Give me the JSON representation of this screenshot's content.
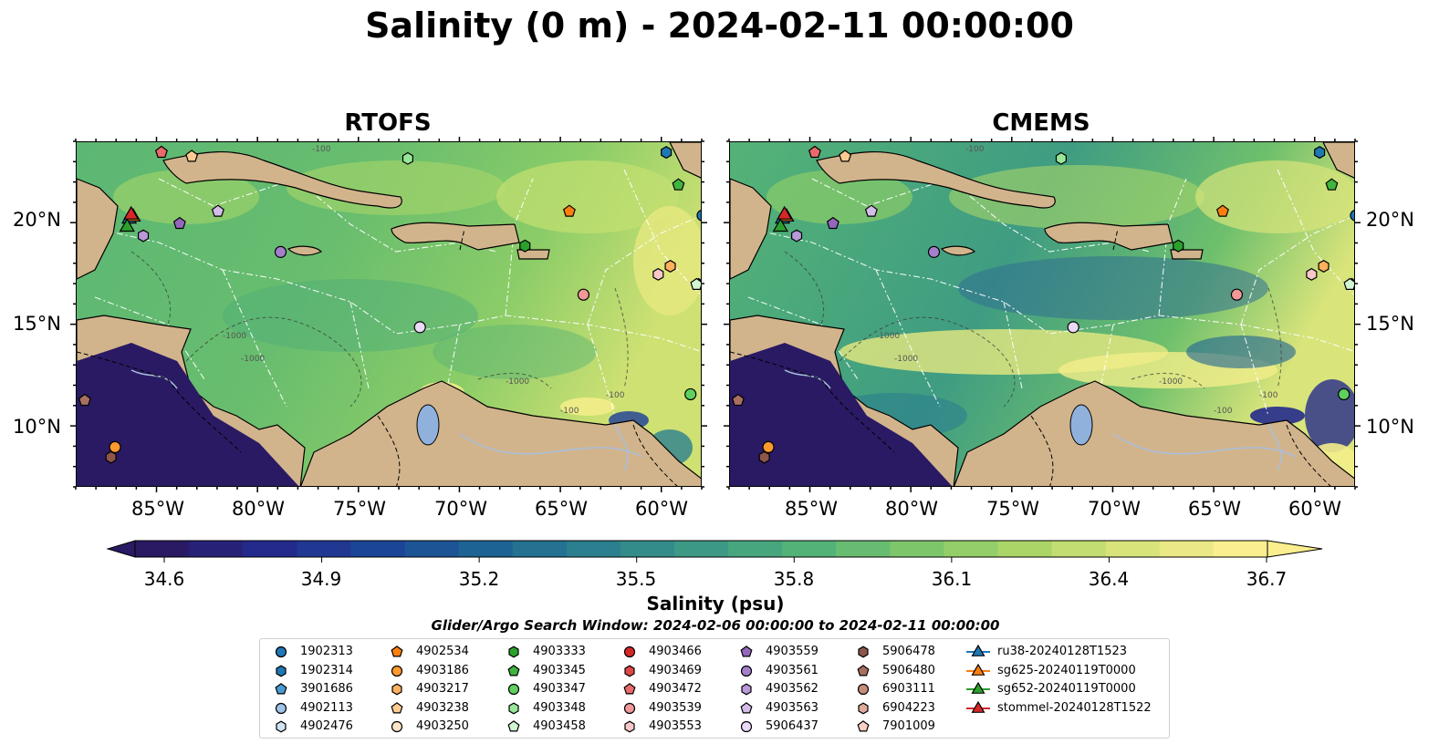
{
  "title": "Salinity (0 m) - 2024-02-11 00:00:00",
  "panels": [
    {
      "title": "RTOFS"
    },
    {
      "title": "CMEMS"
    }
  ],
  "map": {
    "lon_range": [
      -89,
      -58
    ],
    "lat_range": [
      7,
      24
    ],
    "lat_ticks": [
      "20°N",
      "15°N",
      "10°N"
    ],
    "lon_ticks": [
      "85°W",
      "80°W",
      "75°W",
      "70°W",
      "65°W",
      "60°W"
    ],
    "contour_labels": [
      "-100",
      "-1000",
      "-100",
      "-1000",
      "-1000",
      "-100"
    ],
    "land_color": "#d2b48c",
    "lake_color": "#8fb1dc",
    "river_color": "#a9bedc"
  },
  "colorbar": {
    "min": 34.6,
    "max": 36.7,
    "ticks": [
      "34.6",
      "34.9",
      "35.2",
      "35.5",
      "35.8",
      "36.1",
      "36.4",
      "36.7"
    ],
    "label": "Salinity (psu)",
    "colormap": [
      "#2a1a64",
      "#242a8c",
      "#1b4596",
      "#1d6394",
      "#2b7f8e",
      "#3b9985",
      "#53b277",
      "#7dc66a",
      "#abd667",
      "#d8e47a",
      "#fbee8f"
    ]
  },
  "search_window": "Glider/Argo Search Window: 2024-02-06 00:00:00 to 2024-02-11 00:00:00",
  "legend": {
    "columns": [
      [
        {
          "label": "1902313",
          "marker": "circle",
          "color": "#1f77b4"
        },
        {
          "label": "1902314",
          "marker": "hexagon",
          "color": "#1f77b4"
        },
        {
          "label": "3901686",
          "marker": "pentagon",
          "color": "#4a9bd5"
        },
        {
          "label": "4902113",
          "marker": "circle",
          "color": "#9ec5e8"
        },
        {
          "label": "4902476",
          "marker": "hexagon",
          "color": "#cfe3f5"
        }
      ],
      [
        {
          "label": "4902534",
          "marker": "pentagon",
          "color": "#ff7f0e"
        },
        {
          "label": "4903186",
          "marker": "circle",
          "color": "#ff9a2e"
        },
        {
          "label": "4903217",
          "marker": "hexagon",
          "color": "#ffb15e"
        },
        {
          "label": "4903238",
          "marker": "pentagon",
          "color": "#ffcb93"
        },
        {
          "label": "4903250",
          "marker": "circle",
          "color": "#ffe6c8"
        }
      ],
      [
        {
          "label": "4903333",
          "marker": "hexagon",
          "color": "#2ca02c"
        },
        {
          "label": "4903345",
          "marker": "pentagon",
          "color": "#3fb43f"
        },
        {
          "label": "4903347",
          "marker": "circle",
          "color": "#5fd05f"
        },
        {
          "label": "4903348",
          "marker": "hexagon",
          "color": "#98e698"
        },
        {
          "label": "4903458",
          "marker": "pentagon",
          "color": "#d2f5d2"
        }
      ],
      [
        {
          "label": "4903466",
          "marker": "circle",
          "color": "#d62728"
        },
        {
          "label": "4903469",
          "marker": "hexagon",
          "color": "#e04848"
        },
        {
          "label": "4903472",
          "marker": "pentagon",
          "color": "#e86a6a"
        },
        {
          "label": "4903539",
          "marker": "circle",
          "color": "#f19898"
        },
        {
          "label": "4903553",
          "marker": "hexagon",
          "color": "#f8c8c8"
        }
      ],
      [
        {
          "label": "4903559",
          "marker": "pentagon",
          "color": "#9467bd"
        },
        {
          "label": "4903561",
          "marker": "circle",
          "color": "#a57fcb"
        },
        {
          "label": "4903562",
          "marker": "hexagon",
          "color": "#b899d9"
        },
        {
          "label": "4903563",
          "marker": "pentagon",
          "color": "#d4bde8"
        },
        {
          "label": "5906437",
          "marker": "circle",
          "color": "#ead9f7"
        }
      ],
      [
        {
          "label": "5906478",
          "marker": "hexagon",
          "color": "#8c564b"
        },
        {
          "label": "5906480",
          "marker": "pentagon",
          "color": "#a87060"
        },
        {
          "label": "6903111",
          "marker": "circle",
          "color": "#c68c7c"
        },
        {
          "label": "6904223",
          "marker": "hexagon",
          "color": "#e0aa9a"
        },
        {
          "label": "7901009",
          "marker": "pentagon",
          "color": "#f5d2c3"
        }
      ],
      [
        {
          "label": "ru38-20240128T1523",
          "marker": "triangle-line",
          "color": "#1f77b4"
        },
        {
          "label": "sg625-20240119T0000",
          "marker": "triangle-line",
          "color": "#ff7f0e"
        },
        {
          "label": "sg652-20240119T0000",
          "marker": "triangle-line",
          "color": "#2ca02c"
        },
        {
          "label": "stommel-20240128T1522",
          "marker": "triangle-line",
          "color": "#d62728"
        }
      ]
    ]
  },
  "floats": [
    {
      "id": "1902313",
      "lon": -58.0,
      "lat": 20.4
    },
    {
      "id": "1902314",
      "lon": -59.8,
      "lat": 23.5
    },
    {
      "id": "3901686",
      "lon": -58.2,
      "lat": 17.0
    },
    {
      "id": "4902534",
      "lon": -64.6,
      "lat": 20.6
    },
    {
      "id": "4903186",
      "lon": -87.1,
      "lat": 9.0
    },
    {
      "id": "4903217",
      "lon": -59.6,
      "lat": 17.9
    },
    {
      "id": "4903238",
      "lon": -83.3,
      "lat": 23.3
    },
    {
      "id": "4903333",
      "lon": -66.8,
      "lat": 18.9
    },
    {
      "id": "4903345",
      "lon": -59.2,
      "lat": 21.9
    },
    {
      "id": "4903347",
      "lon": -58.6,
      "lat": 11.6
    },
    {
      "id": "4903348",
      "lon": -72.6,
      "lat": 23.2
    },
    {
      "id": "4903458",
      "lon": -58.3,
      "lat": 17.0
    },
    {
      "id": "4903472",
      "lon": -84.8,
      "lat": 23.5
    },
    {
      "id": "4903539",
      "lon": -63.9,
      "lat": 16.5
    },
    {
      "id": "4903553",
      "lon": -60.2,
      "lat": 17.5
    },
    {
      "id": "4903559",
      "lon": -83.9,
      "lat": 20.0
    },
    {
      "id": "4903561",
      "lon": -78.9,
      "lat": 18.6
    },
    {
      "id": "4903562",
      "lon": -85.7,
      "lat": 19.4
    },
    {
      "id": "4903563",
      "lon": -82.0,
      "lat": 20.6
    },
    {
      "id": "5906437",
      "lon": -72.0,
      "lat": 14.9
    },
    {
      "id": "5906478",
      "lon": -87.3,
      "lat": 8.5
    },
    {
      "id": "5906480",
      "lon": -88.6,
      "lat": 11.3
    }
  ],
  "gliders": [
    {
      "id": "ru38-20240128T1523",
      "lon": -86.4,
      "lat": 20.3
    },
    {
      "id": "sg625-20240119T0000",
      "lon": -86.2,
      "lat": 20.4
    },
    {
      "id": "sg652-20240119T0000",
      "lon": -86.5,
      "lat": 19.9
    },
    {
      "id": "stommel-20240128T1522",
      "lon": -86.3,
      "lat": 20.5
    }
  ]
}
